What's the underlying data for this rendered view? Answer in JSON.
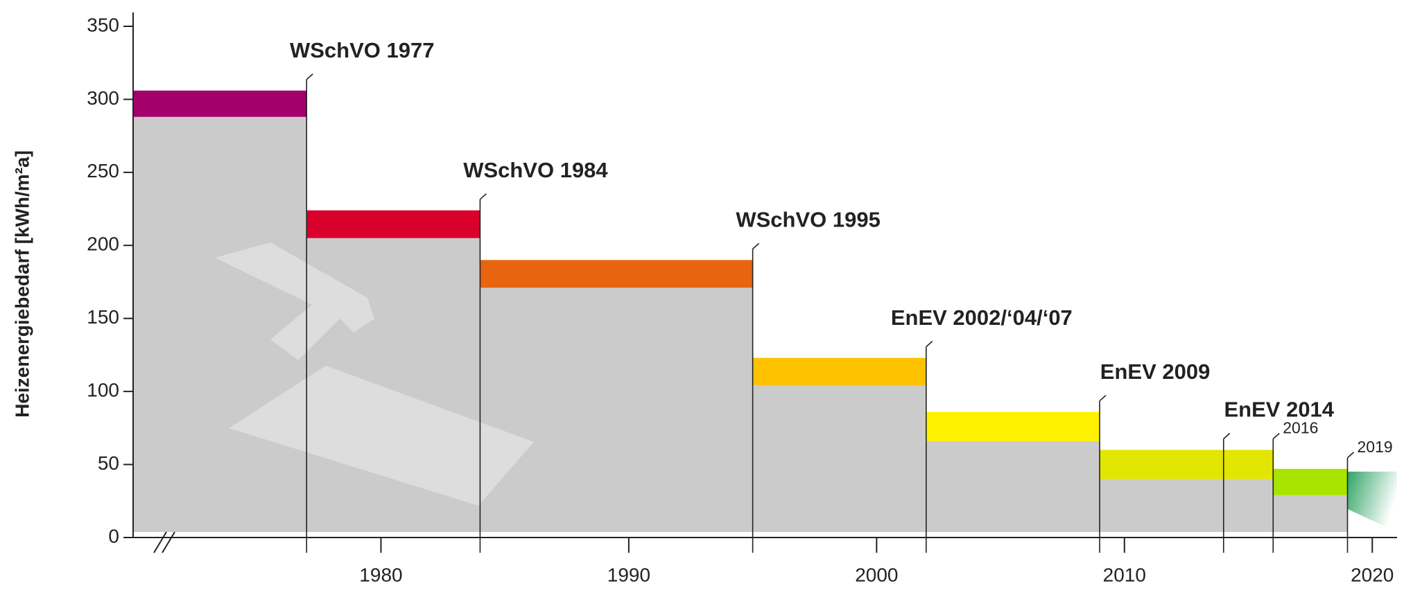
{
  "chart_data": {
    "type": "step_band",
    "y_label": "Heizenergiebedarf [kWh/m²a]",
    "x": [
      1977,
      1984,
      1995,
      2002,
      2009,
      2016,
      2019
    ],
    "high": [
      306,
      224,
      190,
      123,
      86,
      60,
      47
    ],
    "low": [
      288,
      205,
      171,
      104,
      66,
      40,
      29
    ],
    "colors": [
      "#a3006b",
      "#d9002b",
      "#e8640f",
      "#ffc200",
      "#fff200",
      "#e2e600",
      "#a9e300"
    ],
    "base_color": "#cbcbcb",
    "annotations": [
      {
        "text": "WSchVO 1977",
        "x": 1977
      },
      {
        "text": "WSchVO 1984",
        "x": 1984
      },
      {
        "text": "WSchVO 1995",
        "x": 1995
      },
      {
        "text": "EnEV 2002/‘04/‘07",
        "x": 2002
      },
      {
        "text": "EnEV 2009",
        "x": 2009
      },
      {
        "text": "EnEV 2014",
        "x": 2014
      },
      {
        "text": "2016",
        "x": 2016
      },
      {
        "text": "2019",
        "x": 2019
      }
    ],
    "xlim": [
      1970,
      2021
    ],
    "ylim": [
      0,
      350
    ],
    "xticks": [
      1980,
      1990,
      2000,
      2010,
      2020
    ],
    "yticks": [
      0,
      50,
      100,
      150,
      200,
      250,
      300,
      350
    ]
  }
}
